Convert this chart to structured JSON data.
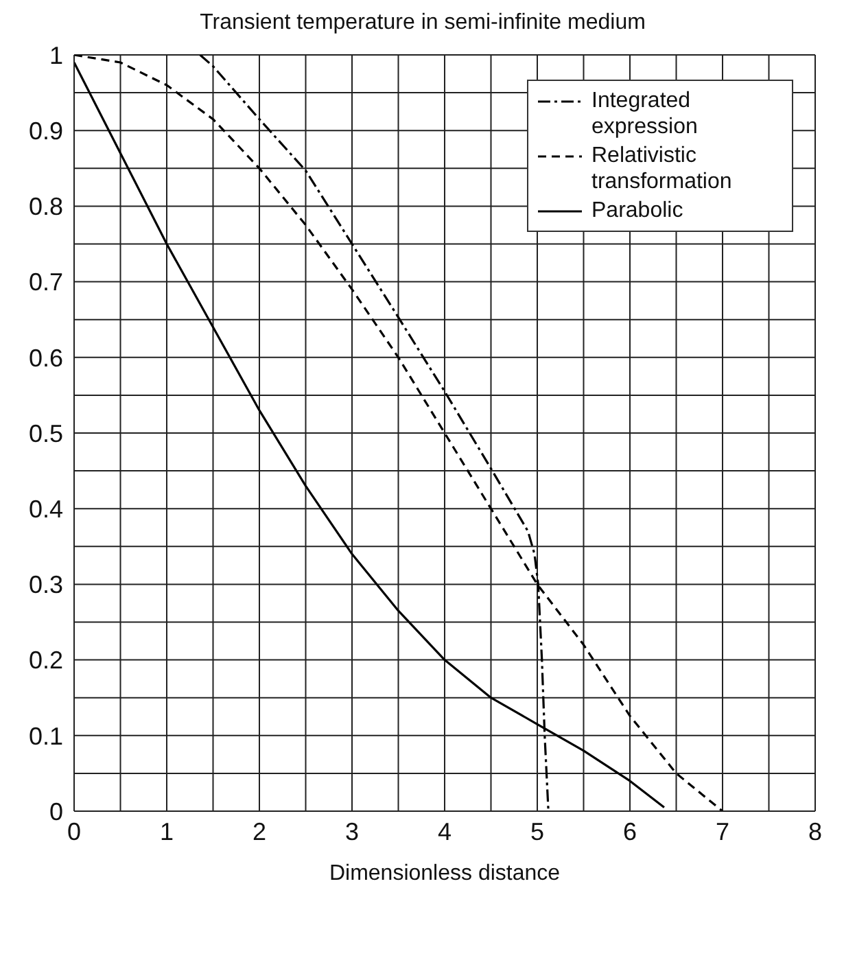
{
  "chart_data": {
    "type": "line",
    "title": "Transient temperature in semi-infinite medium",
    "xlabel": "Dimensionless distance",
    "xlim": [
      0,
      8
    ],
    "ylim": [
      0,
      1
    ],
    "xticks": [
      0,
      {
        "value": 0.5,
        "label": null
      },
      1,
      {
        "value": 1.5,
        "label": null
      },
      2,
      {
        "value": 2.5,
        "label": null
      },
      3,
      {
        "value": 3.5,
        "label": null
      },
      4,
      {
        "value": 4.5,
        "label": null
      },
      5,
      {
        "value": 5.5,
        "label": null
      },
      6,
      {
        "value": 6.5,
        "label": null
      },
      7,
      {
        "value": 7.5,
        "label": null
      },
      8
    ],
    "yticks": [
      0,
      {
        "value": 0.05,
        "label": null
      },
      0.1,
      {
        "value": 0.15,
        "label": null
      },
      0.2,
      {
        "value": 0.25,
        "label": null
      },
      0.3,
      {
        "value": 0.35,
        "label": null
      },
      0.4,
      {
        "value": 0.45,
        "label": null
      },
      0.5,
      {
        "value": 0.55,
        "label": null
      },
      0.6,
      {
        "value": 0.65,
        "label": null
      },
      0.7,
      {
        "value": 0.75,
        "label": null
      },
      0.8,
      {
        "value": 0.85,
        "label": null
      },
      0.9,
      {
        "value": 0.95,
        "label": null
      },
      1
    ],
    "grid": true,
    "legend": "top right",
    "marker": "none",
    "series": [
      {
        "name": "Integrated expression",
        "color": "#000000",
        "line_style": "dashdot",
        "x": [
          1.36,
          1.5,
          2,
          2.5,
          3,
          3.5,
          4,
          4.5,
          4.9,
          4.97,
          5.01,
          5.05,
          5.08,
          5.12
        ],
        "values": [
          1,
          0.985,
          0.915,
          0.847,
          0.75,
          0.653,
          0.555,
          0.453,
          0.37,
          0.34,
          0.3,
          0.2,
          0.1,
          0
        ]
      },
      {
        "name": "Relativistic transformation",
        "color": "#000000",
        "line_style": "dashed",
        "x": [
          0,
          0.5,
          1,
          1.5,
          2,
          2.5,
          3,
          3.5,
          4,
          4.5,
          5,
          5.5,
          6,
          6.5,
          7
        ],
        "values": [
          1,
          0.99,
          0.96,
          0.915,
          0.85,
          0.775,
          0.69,
          0.6,
          0.5,
          0.4,
          0.3,
          0.22,
          0.126,
          0.05,
          0
        ]
      },
      {
        "name": "Parabolic",
        "color": "#000000",
        "line_style": "solid",
        "x": [
          0,
          0.5,
          1,
          1.5,
          2,
          2.5,
          3,
          3.5,
          4,
          4.5,
          5,
          5.5,
          6,
          6.37
        ],
        "values": [
          0.99,
          0.87,
          0.75,
          0.64,
          0.53,
          0.43,
          0.34,
          0.265,
          0.2,
          0.15,
          0.115,
          0.08,
          0.04,
          0.005
        ]
      }
    ]
  }
}
